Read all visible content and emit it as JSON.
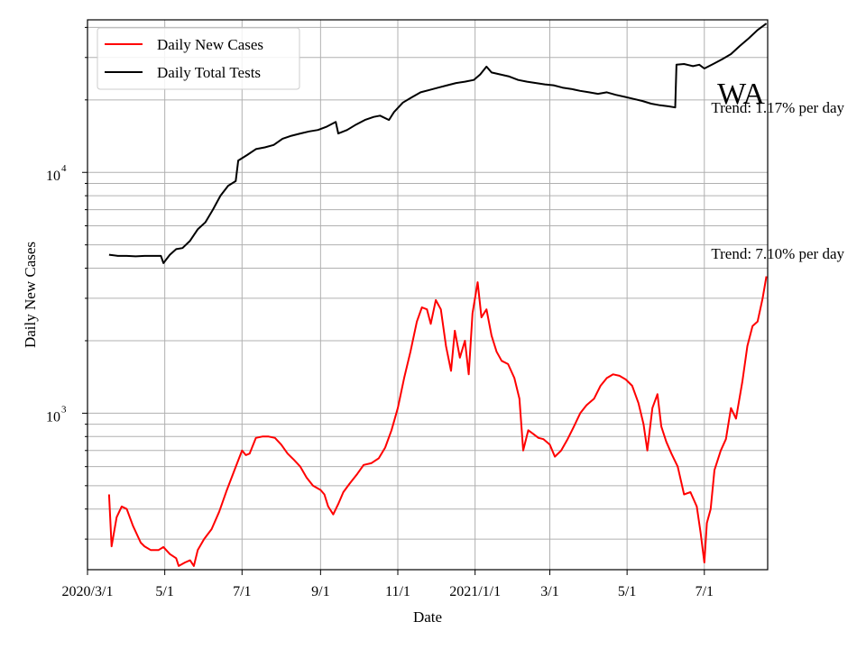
{
  "chart_data": {
    "type": "line",
    "xlabel": "Date",
    "ylabel": "Daily New Cases",
    "yscale": "log",
    "ylim": [
      224,
      43000
    ],
    "xlim": [
      "2020-03-01",
      "2021-08-20"
    ],
    "grid": true,
    "legend_position": "top-left",
    "x_ticks": [
      {
        "label": "2020/3/1",
        "date": "2020-03-01"
      },
      {
        "label": "5/1",
        "date": "2020-05-01"
      },
      {
        "label": "7/1",
        "date": "2020-07-01"
      },
      {
        "label": "9/1",
        "date": "2020-09-01"
      },
      {
        "label": "11/1",
        "date": "2020-11-01"
      },
      {
        "label": "2021/1/1",
        "date": "2021-01-01"
      },
      {
        "label": "3/1",
        "date": "2021-03-01"
      },
      {
        "label": "5/1",
        "date": "2021-05-01"
      },
      {
        "label": "7/1",
        "date": "2021-07-01"
      }
    ],
    "y_major_ticks": [
      {
        "label": "10",
        "exp": "3",
        "value": 1000
      },
      {
        "label": "10",
        "exp": "4",
        "value": 10000
      }
    ],
    "annotations": {
      "state": "WA",
      "trend_tests": "Trend: 1.17% per day",
      "trend_cases": "Trend: 7.10% per day"
    },
    "series": [
      {
        "name": "Daily New Cases",
        "color": "#ff0000",
        "points": [
          [
            "2020-03-18",
            460
          ],
          [
            "2020-03-20",
            280
          ],
          [
            "2020-03-24",
            370
          ],
          [
            "2020-03-28",
            410
          ],
          [
            "2020-04-01",
            400
          ],
          [
            "2020-04-06",
            340
          ],
          [
            "2020-04-12",
            290
          ],
          [
            "2020-04-15",
            280
          ],
          [
            "2020-04-20",
            270
          ],
          [
            "2020-04-26",
            270
          ],
          [
            "2020-04-30",
            278
          ],
          [
            "2020-05-05",
            260
          ],
          [
            "2020-05-10",
            250
          ],
          [
            "2020-05-12",
            232
          ],
          [
            "2020-05-17",
            240
          ],
          [
            "2020-05-21",
            245
          ],
          [
            "2020-05-24",
            232
          ],
          [
            "2020-05-27",
            270
          ],
          [
            "2020-06-01",
            300
          ],
          [
            "2020-06-07",
            330
          ],
          [
            "2020-06-13",
            390
          ],
          [
            "2020-06-19",
            480
          ],
          [
            "2020-06-25",
            580
          ],
          [
            "2020-07-01",
            700
          ],
          [
            "2020-07-04",
            670
          ],
          [
            "2020-07-07",
            680
          ],
          [
            "2020-07-12",
            790
          ],
          [
            "2020-07-17",
            800
          ],
          [
            "2020-07-22",
            800
          ],
          [
            "2020-07-27",
            790
          ],
          [
            "2020-08-01",
            740
          ],
          [
            "2020-08-06",
            680
          ],
          [
            "2020-08-11",
            640
          ],
          [
            "2020-08-16",
            600
          ],
          [
            "2020-08-21",
            540
          ],
          [
            "2020-08-26",
            500
          ],
          [
            "2020-09-01",
            480
          ],
          [
            "2020-09-04",
            460
          ],
          [
            "2020-09-07",
            410
          ],
          [
            "2020-09-11",
            380
          ],
          [
            "2020-09-15",
            420
          ],
          [
            "2020-09-19",
            470
          ],
          [
            "2020-09-24",
            510
          ],
          [
            "2020-09-30",
            560
          ],
          [
            "2020-10-05",
            610
          ],
          [
            "2020-10-11",
            620
          ],
          [
            "2020-10-17",
            650
          ],
          [
            "2020-10-22",
            720
          ],
          [
            "2020-10-27",
            850
          ],
          [
            "2020-11-01",
            1050
          ],
          [
            "2020-11-06",
            1400
          ],
          [
            "2020-11-11",
            1800
          ],
          [
            "2020-11-16",
            2400
          ],
          [
            "2020-11-20",
            2750
          ],
          [
            "2020-11-24",
            2700
          ],
          [
            "2020-11-27",
            2350
          ],
          [
            "2020-12-01",
            2950
          ],
          [
            "2020-12-05",
            2700
          ],
          [
            "2020-12-09",
            1900
          ],
          [
            "2020-12-13",
            1500
          ],
          [
            "2020-12-16",
            2200
          ],
          [
            "2020-12-20",
            1700
          ],
          [
            "2020-12-24",
            2000
          ],
          [
            "2020-12-27",
            1450
          ],
          [
            "2020-12-30",
            2600
          ],
          [
            "2021-01-03",
            3500
          ],
          [
            "2021-01-06",
            2500
          ],
          [
            "2021-01-10",
            2700
          ],
          [
            "2021-01-14",
            2100
          ],
          [
            "2021-01-18",
            1800
          ],
          [
            "2021-01-22",
            1650
          ],
          [
            "2021-01-27",
            1600
          ],
          [
            "2021-02-01",
            1400
          ],
          [
            "2021-02-05",
            1150
          ],
          [
            "2021-02-08",
            700
          ],
          [
            "2021-02-12",
            850
          ],
          [
            "2021-02-16",
            820
          ],
          [
            "2021-02-20",
            790
          ],
          [
            "2021-02-24",
            780
          ],
          [
            "2021-03-01",
            740
          ],
          [
            "2021-03-05",
            660
          ],
          [
            "2021-03-10",
            700
          ],
          [
            "2021-03-15",
            780
          ],
          [
            "2021-03-20",
            880
          ],
          [
            "2021-03-25",
            1000
          ],
          [
            "2021-03-30",
            1080
          ],
          [
            "2021-04-05",
            1150
          ],
          [
            "2021-04-10",
            1300
          ],
          [
            "2021-04-15",
            1400
          ],
          [
            "2021-04-20",
            1450
          ],
          [
            "2021-04-25",
            1430
          ],
          [
            "2021-04-30",
            1380
          ],
          [
            "2021-05-05",
            1300
          ],
          [
            "2021-05-10",
            1100
          ],
          [
            "2021-05-14",
            900
          ],
          [
            "2021-05-17",
            700
          ],
          [
            "2021-05-21",
            1050
          ],
          [
            "2021-05-25",
            1200
          ],
          [
            "2021-05-28",
            880
          ],
          [
            "2021-06-01",
            760
          ],
          [
            "2021-06-05",
            680
          ],
          [
            "2021-06-10",
            600
          ],
          [
            "2021-06-15",
            460
          ],
          [
            "2021-06-20",
            470
          ],
          [
            "2021-06-25",
            410
          ],
          [
            "2021-06-28",
            320
          ],
          [
            "2021-07-01",
            240
          ],
          [
            "2021-07-03",
            350
          ],
          [
            "2021-07-06",
            400
          ],
          [
            "2021-07-09",
            580
          ],
          [
            "2021-07-14",
            700
          ],
          [
            "2021-07-18",
            780
          ],
          [
            "2021-07-22",
            1050
          ],
          [
            "2021-07-26",
            950
          ],
          [
            "2021-07-31",
            1350
          ],
          [
            "2021-08-04",
            1900
          ],
          [
            "2021-08-08",
            2300
          ],
          [
            "2021-08-12",
            2400
          ],
          [
            "2021-08-16",
            3000
          ],
          [
            "2021-08-19",
            3700
          ]
        ]
      },
      {
        "name": "Daily Total Tests",
        "color": "#000000",
        "points": [
          [
            "2020-03-18",
            4550
          ],
          [
            "2020-03-25",
            4500
          ],
          [
            "2020-04-01",
            4500
          ],
          [
            "2020-04-08",
            4480
          ],
          [
            "2020-04-15",
            4500
          ],
          [
            "2020-04-22",
            4500
          ],
          [
            "2020-04-28",
            4500
          ],
          [
            "2020-04-30",
            4200
          ],
          [
            "2020-05-05",
            4550
          ],
          [
            "2020-05-10",
            4800
          ],
          [
            "2020-05-15",
            4850
          ],
          [
            "2020-05-21",
            5200
          ],
          [
            "2020-05-27",
            5800
          ],
          [
            "2020-06-02",
            6200
          ],
          [
            "2020-06-08",
            7000
          ],
          [
            "2020-06-14",
            8000
          ],
          [
            "2020-06-20",
            8800
          ],
          [
            "2020-06-26",
            9200
          ],
          [
            "2020-06-28",
            11200
          ],
          [
            "2020-07-05",
            11800
          ],
          [
            "2020-07-12",
            12500
          ],
          [
            "2020-07-19",
            12700
          ],
          [
            "2020-07-26",
            13000
          ],
          [
            "2020-08-02",
            13800
          ],
          [
            "2020-08-09",
            14200
          ],
          [
            "2020-08-16",
            14500
          ],
          [
            "2020-08-23",
            14800
          ],
          [
            "2020-08-30",
            15000
          ],
          [
            "2020-09-06",
            15500
          ],
          [
            "2020-09-13",
            16200
          ],
          [
            "2020-09-15",
            14500
          ],
          [
            "2020-09-22",
            15000
          ],
          [
            "2020-09-29",
            15800
          ],
          [
            "2020-10-06",
            16500
          ],
          [
            "2020-10-13",
            17000
          ],
          [
            "2020-10-18",
            17200
          ],
          [
            "2020-10-25",
            16500
          ],
          [
            "2020-10-29",
            17800
          ],
          [
            "2020-11-05",
            19500
          ],
          [
            "2020-11-12",
            20500
          ],
          [
            "2020-11-19",
            21500
          ],
          [
            "2020-11-26",
            22000
          ],
          [
            "2020-12-03",
            22500
          ],
          [
            "2020-12-10",
            23000
          ],
          [
            "2020-12-17",
            23500
          ],
          [
            "2020-12-24",
            23800
          ],
          [
            "2020-12-31",
            24200
          ],
          [
            "2021-01-05",
            25500
          ],
          [
            "2021-01-10",
            27500
          ],
          [
            "2021-01-14",
            26000
          ],
          [
            "2021-01-21",
            25500
          ],
          [
            "2021-01-28",
            25000
          ],
          [
            "2021-02-04",
            24200
          ],
          [
            "2021-02-11",
            23800
          ],
          [
            "2021-02-18",
            23500
          ],
          [
            "2021-02-25",
            23200
          ],
          [
            "2021-03-04",
            23000
          ],
          [
            "2021-03-11",
            22500
          ],
          [
            "2021-03-18",
            22200
          ],
          [
            "2021-03-25",
            21800
          ],
          [
            "2021-04-01",
            21500
          ],
          [
            "2021-04-08",
            21200
          ],
          [
            "2021-04-15",
            21500
          ],
          [
            "2021-04-22",
            21000
          ],
          [
            "2021-04-29",
            20600
          ],
          [
            "2021-05-06",
            20200
          ],
          [
            "2021-05-13",
            19800
          ],
          [
            "2021-05-20",
            19300
          ],
          [
            "2021-05-27",
            19000
          ],
          [
            "2021-06-03",
            18800
          ],
          [
            "2021-06-08",
            18600
          ],
          [
            "2021-06-09",
            28000
          ],
          [
            "2021-06-15",
            28200
          ],
          [
            "2021-06-22",
            27600
          ],
          [
            "2021-06-27",
            28000
          ],
          [
            "2021-07-01",
            27000
          ],
          [
            "2021-07-08",
            28200
          ],
          [
            "2021-07-15",
            29500
          ],
          [
            "2021-07-22",
            31000
          ],
          [
            "2021-07-29",
            33500
          ],
          [
            "2021-08-05",
            36000
          ],
          [
            "2021-08-12",
            39000
          ],
          [
            "2021-08-19",
            41500
          ]
        ]
      }
    ]
  }
}
